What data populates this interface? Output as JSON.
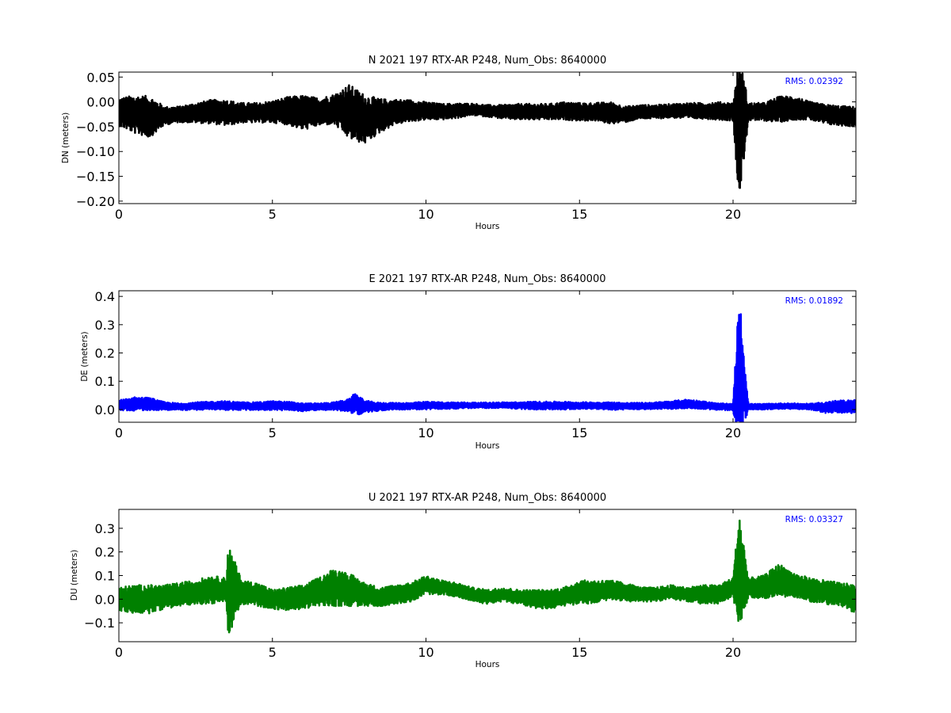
{
  "chart_data": [
    {
      "type": "line",
      "title": "N 2021 197 RTX-AR  P248, Num_Obs: 8640000",
      "xlabel": "Hours",
      "ylabel": "DN (meters)",
      "xlim": [
        0,
        24
      ],
      "ylim": [
        -0.205,
        0.06
      ],
      "xticks": [
        0,
        5,
        10,
        15,
        20
      ],
      "xtick_labels": [
        "0",
        "5",
        "10",
        "15",
        "20"
      ],
      "yticks": [
        0.05,
        0.0,
        -0.05,
        -0.1,
        -0.15,
        -0.2
      ],
      "ytick_labels": [
        "0.05",
        "0.00",
        "−0.05",
        "−0.10",
        "−0.15",
        "−0.20"
      ],
      "annotation": "RMS:  0.02392",
      "annotation_color": "#0000ff",
      "line_color": "#000000",
      "series": [
        {
          "x": [
            0,
            0.5,
            1,
            1.5,
            2,
            2.5,
            3,
            3.5,
            4,
            4.5,
            5,
            5.5,
            6,
            6.5,
            7,
            7.5,
            8,
            8.5,
            9,
            9.5,
            10,
            10.5,
            11,
            11.5,
            12,
            12.5,
            13,
            13.5,
            14,
            14.5,
            15,
            15.5,
            16,
            16.5,
            17,
            17.5,
            18,
            18.5,
            19,
            19.5,
            20,
            20.2,
            20.5,
            21,
            21.5,
            22,
            22.5,
            23,
            23.5,
            24
          ],
          "center": [
            -0.02,
            -0.025,
            -0.03,
            -0.028,
            -0.025,
            -0.022,
            -0.02,
            -0.022,
            -0.022,
            -0.022,
            -0.02,
            -0.018,
            -0.022,
            -0.02,
            -0.015,
            -0.02,
            -0.035,
            -0.028,
            -0.02,
            -0.018,
            -0.018,
            -0.02,
            -0.018,
            -0.015,
            -0.018,
            -0.02,
            -0.02,
            -0.02,
            -0.02,
            -0.018,
            -0.02,
            -0.02,
            -0.022,
            -0.025,
            -0.02,
            -0.02,
            -0.018,
            -0.018,
            -0.018,
            -0.018,
            -0.02,
            -0.05,
            -0.02,
            -0.02,
            -0.015,
            -0.012,
            -0.018,
            -0.025,
            -0.028,
            -0.03
          ],
          "spread": [
            0.028,
            0.038,
            0.042,
            0.018,
            0.016,
            0.02,
            0.024,
            0.026,
            0.02,
            0.02,
            0.022,
            0.028,
            0.035,
            0.028,
            0.03,
            0.055,
            0.05,
            0.034,
            0.025,
            0.022,
            0.018,
            0.016,
            0.015,
            0.012,
            0.012,
            0.014,
            0.016,
            0.016,
            0.016,
            0.018,
            0.018,
            0.018,
            0.022,
            0.016,
            0.014,
            0.014,
            0.014,
            0.016,
            0.016,
            0.018,
            0.018,
            0.15,
            0.018,
            0.018,
            0.026,
            0.024,
            0.018,
            0.02,
            0.02,
            0.02
          ]
        }
      ]
    },
    {
      "type": "line",
      "title": "E 2021 197 RTX-AR  P248, Num_Obs: 8640000",
      "xlabel": "Hours",
      "ylabel": "DE (meters)",
      "xlim": [
        0,
        24
      ],
      "ylim": [
        -0.045,
        0.42
      ],
      "xticks": [
        0,
        5,
        10,
        15,
        20
      ],
      "xtick_labels": [
        "0",
        "5",
        "10",
        "15",
        "20"
      ],
      "yticks": [
        0.4,
        0.3,
        0.2,
        0.1,
        0.0
      ],
      "ytick_labels": [
        "0.4",
        "0.3",
        "0.2",
        "0.1",
        "0.0"
      ],
      "annotation": "RMS:  0.01892",
      "annotation_color": "#0000ff",
      "line_color": "#0000ff",
      "series": [
        {
          "x": [
            0,
            0.5,
            1,
            1.5,
            2,
            2.5,
            3,
            3.5,
            4,
            4.5,
            5,
            5.5,
            6,
            6.5,
            7,
            7.5,
            7.7,
            8,
            8.5,
            9,
            9.5,
            10,
            10.5,
            11,
            11.5,
            12,
            12.5,
            13,
            13.5,
            14,
            14.5,
            15,
            15.5,
            16,
            16.5,
            17,
            17.5,
            18,
            18.5,
            19,
            19.5,
            20,
            20.2,
            20.5,
            21,
            21.5,
            22,
            22.5,
            23,
            23.5,
            24
          ],
          "center": [
            0.015,
            0.02,
            0.02,
            0.012,
            0.01,
            0.012,
            0.014,
            0.014,
            0.012,
            0.012,
            0.014,
            0.012,
            0.008,
            0.01,
            0.012,
            0.015,
            0.02,
            0.01,
            0.01,
            0.012,
            0.012,
            0.014,
            0.014,
            0.014,
            0.015,
            0.015,
            0.016,
            0.014,
            0.014,
            0.014,
            0.014,
            0.014,
            0.014,
            0.012,
            0.012,
            0.012,
            0.014,
            0.016,
            0.02,
            0.016,
            0.01,
            0.008,
            0.15,
            0.01,
            0.01,
            0.012,
            0.012,
            0.01,
            0.008,
            0.01,
            0.01
          ],
          "spread": [
            0.018,
            0.024,
            0.022,
            0.014,
            0.012,
            0.014,
            0.014,
            0.016,
            0.014,
            0.014,
            0.016,
            0.016,
            0.014,
            0.012,
            0.014,
            0.022,
            0.04,
            0.022,
            0.014,
            0.012,
            0.012,
            0.014,
            0.012,
            0.012,
            0.01,
            0.01,
            0.01,
            0.012,
            0.014,
            0.014,
            0.014,
            0.012,
            0.012,
            0.014,
            0.012,
            0.012,
            0.012,
            0.014,
            0.016,
            0.014,
            0.012,
            0.012,
            0.26,
            0.01,
            0.01,
            0.01,
            0.01,
            0.01,
            0.02,
            0.022,
            0.024
          ]
        }
      ]
    },
    {
      "type": "line",
      "title": "U 2021 197 RTX-AR  P248, Num_Obs: 8640000",
      "xlabel": "Hours",
      "ylabel": "DU (meters)",
      "xlim": [
        0,
        24
      ],
      "ylim": [
        -0.18,
        0.38
      ],
      "xticks": [
        0,
        5,
        10,
        15,
        20
      ],
      "xtick_labels": [
        "0",
        "5",
        "10",
        "15",
        "20"
      ],
      "yticks": [
        0.3,
        0.2,
        0.1,
        0.0,
        -0.1
      ],
      "ytick_labels": [
        "0.3",
        "0.2",
        "0.1",
        "0.0",
        "−0.1"
      ],
      "annotation": "RMS:  0.03327",
      "annotation_color": "#0000ff",
      "line_color": "#008000",
      "series": [
        {
          "x": [
            0,
            0.5,
            1,
            1.5,
            2,
            2.5,
            3,
            3.5,
            3.55,
            4,
            4.5,
            5,
            5.5,
            6,
            6.5,
            7,
            7.5,
            8,
            8.5,
            9,
            9.5,
            10,
            10.5,
            11,
            11.5,
            12,
            12.5,
            13,
            13.5,
            14,
            14.5,
            15,
            15.5,
            16,
            16.5,
            17,
            17.5,
            18,
            18.5,
            19,
            19.5,
            20,
            20.2,
            20.5,
            21,
            21.5,
            22,
            22.5,
            23,
            23.5,
            24
          ],
          "center": [
            0.0,
            0.0,
            0.0,
            0.01,
            0.02,
            0.03,
            0.04,
            0.04,
            0.04,
            0.03,
            0.02,
            0.0,
            0.0,
            0.01,
            0.03,
            0.05,
            0.04,
            0.02,
            0.01,
            0.02,
            0.03,
            0.06,
            0.05,
            0.04,
            0.02,
            0.01,
            0.02,
            0.01,
            0.0,
            0.0,
            0.01,
            0.03,
            0.03,
            0.04,
            0.03,
            0.02,
            0.02,
            0.03,
            0.02,
            0.02,
            0.02,
            0.05,
            0.12,
            0.05,
            0.05,
            0.08,
            0.06,
            0.04,
            0.03,
            0.02,
            0.0
          ],
          "spread": [
            0.05,
            0.06,
            0.06,
            0.05,
            0.05,
            0.05,
            0.06,
            0.05,
            0.2,
            0.05,
            0.05,
            0.04,
            0.05,
            0.05,
            0.06,
            0.08,
            0.07,
            0.05,
            0.04,
            0.04,
            0.04,
            0.04,
            0.03,
            0.03,
            0.03,
            0.03,
            0.03,
            0.03,
            0.04,
            0.04,
            0.04,
            0.05,
            0.05,
            0.04,
            0.04,
            0.03,
            0.03,
            0.03,
            0.03,
            0.04,
            0.04,
            0.04,
            0.26,
            0.04,
            0.05,
            0.07,
            0.05,
            0.05,
            0.05,
            0.05,
            0.06
          ]
        }
      ]
    }
  ]
}
